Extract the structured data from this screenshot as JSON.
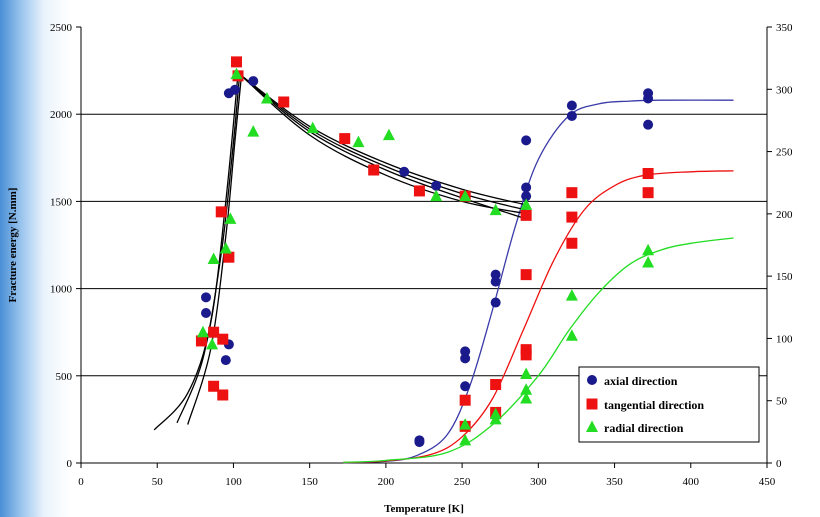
{
  "chart_data": {
    "type": "scatter",
    "xlabel": "Temperature [K]",
    "ylabel": "Fracture energy [N.mm]",
    "xlim": [
      0,
      450
    ],
    "ylim": [
      0,
      2500
    ],
    "y2lim": [
      0,
      350
    ],
    "x_ticks": [
      "0",
      "50",
      "100",
      "150",
      "200",
      "250",
      "300",
      "350",
      "400",
      "450"
    ],
    "y_ticks": [
      "0",
      "500",
      "1000",
      "1500",
      "2000",
      "2500"
    ],
    "y2_ticks": [
      "0",
      "50",
      "100",
      "150",
      "200",
      "250",
      "300",
      "350"
    ],
    "grid": "horizontal",
    "legend_position": "bottom-right",
    "series": [
      {
        "name": "axial direction",
        "axis": "left",
        "marker": "circle",
        "color": "#1a1a8c",
        "points": [
          [
            82,
            950
          ],
          [
            82,
            860
          ],
          [
            95,
            590
          ],
          [
            97,
            680
          ],
          [
            97,
            2120
          ],
          [
            101,
            2140
          ],
          [
            103,
            2220
          ],
          [
            113,
            2190
          ],
          [
            212,
            1670
          ],
          [
            222,
            130
          ],
          [
            222,
            120
          ],
          [
            233,
            1590
          ],
          [
            252,
            640
          ],
          [
            252,
            600
          ],
          [
            252,
            440
          ],
          [
            272,
            1080
          ],
          [
            272,
            1040
          ],
          [
            272,
            920
          ],
          [
            292,
            1850
          ],
          [
            292,
            1580
          ],
          [
            292,
            1530
          ],
          [
            322,
            2050
          ],
          [
            322,
            1990
          ],
          [
            372,
            2120
          ],
          [
            372,
            2090
          ],
          [
            372,
            1940
          ]
        ]
      },
      {
        "name": "tangential direction",
        "axis": "left",
        "marker": "square",
        "color": "#ee1111",
        "points": [
          [
            79,
            700
          ],
          [
            87,
            750
          ],
          [
            87,
            440
          ],
          [
            92,
            1440
          ],
          [
            93,
            710
          ],
          [
            93,
            390
          ],
          [
            97,
            1180
          ],
          [
            102,
            2300
          ],
          [
            103,
            2220
          ],
          [
            133,
            2070
          ],
          [
            173,
            1860
          ],
          [
            192,
            1680
          ],
          [
            222,
            1560
          ],
          [
            252,
            1530
          ],
          [
            252,
            360
          ],
          [
            252,
            210
          ],
          [
            272,
            450
          ],
          [
            272,
            290
          ],
          [
            292,
            1420
          ],
          [
            292,
            1080
          ],
          [
            292,
            650
          ],
          [
            292,
            620
          ],
          [
            322,
            1550
          ],
          [
            322,
            1410
          ],
          [
            322,
            1260
          ],
          [
            372,
            1660
          ],
          [
            372,
            1550
          ]
        ]
      },
      {
        "name": "radial direction",
        "axis": "left",
        "marker": "triangle",
        "color": "#22dd22",
        "points": [
          [
            80,
            750
          ],
          [
            86,
            680
          ],
          [
            87,
            1170
          ],
          [
            95,
            1230
          ],
          [
            98,
            1400
          ],
          [
            102,
            2230
          ],
          [
            113,
            1900
          ],
          [
            122,
            2090
          ],
          [
            152,
            1920
          ],
          [
            182,
            1840
          ],
          [
            202,
            1880
          ],
          [
            233,
            1530
          ],
          [
            252,
            1530
          ],
          [
            252,
            220
          ],
          [
            252,
            130
          ],
          [
            272,
            1450
          ],
          [
            272,
            280
          ],
          [
            272,
            250
          ],
          [
            292,
            1480
          ],
          [
            292,
            510
          ],
          [
            292,
            420
          ],
          [
            292,
            370
          ],
          [
            322,
            960
          ],
          [
            322,
            730
          ],
          [
            372,
            1220
          ],
          [
            372,
            1150
          ]
        ]
      }
    ],
    "fit_curves": [
      {
        "series": "axial direction",
        "color": "#3a3aa8",
        "points": [
          [
            172,
            2
          ],
          [
            200,
            10
          ],
          [
            220,
            42
          ],
          [
            240,
            160
          ],
          [
            255,
            440
          ],
          [
            270,
            880
          ],
          [
            285,
            1360
          ],
          [
            300,
            1740
          ],
          [
            320,
            1990
          ],
          [
            340,
            2060
          ],
          [
            360,
            2075
          ],
          [
            380,
            2080
          ],
          [
            428,
            2080
          ]
        ]
      },
      {
        "series": "tangential direction",
        "color": "#ee1111",
        "points": [
          [
            172,
            3
          ],
          [
            200,
            12
          ],
          [
            230,
            50
          ],
          [
            250,
            150
          ],
          [
            270,
            370
          ],
          [
            290,
            760
          ],
          [
            310,
            1160
          ],
          [
            330,
            1450
          ],
          [
            350,
            1590
          ],
          [
            370,
            1650
          ],
          [
            400,
            1670
          ],
          [
            428,
            1675
          ]
        ]
      },
      {
        "series": "radial direction",
        "color": "#22dd22",
        "points": [
          [
            172,
            4
          ],
          [
            200,
            15
          ],
          [
            240,
            60
          ],
          [
            270,
            220
          ],
          [
            300,
            500
          ],
          [
            320,
            760
          ],
          [
            340,
            980
          ],
          [
            360,
            1140
          ],
          [
            380,
            1220
          ],
          [
            400,
            1260
          ],
          [
            428,
            1290
          ]
        ]
      },
      {
        "series": "",
        "color": "#000000",
        "points": [
          [
            48,
            190
          ],
          [
            70,
            400
          ],
          [
            85,
            800
          ],
          [
            95,
            1500
          ],
          [
            103,
            2230
          ]
        ]
      },
      {
        "series": "",
        "color": "#000000",
        "points": [
          [
            63,
            230
          ],
          [
            80,
            600
          ],
          [
            92,
            1200
          ],
          [
            99,
            1750
          ],
          [
            104,
            2220
          ]
        ]
      },
      {
        "series": "",
        "color": "#000000",
        "points": [
          [
            70,
            220
          ],
          [
            85,
            650
          ],
          [
            95,
            1300
          ],
          [
            101,
            1850
          ],
          [
            105,
            2200
          ]
        ]
      },
      {
        "series": "",
        "color": "#000000",
        "points": [
          [
            104,
            2230
          ],
          [
            150,
            1900
          ],
          [
            200,
            1680
          ],
          [
            250,
            1520
          ],
          [
            292,
            1400
          ]
        ]
      },
      {
        "series": "",
        "color": "#000000",
        "points": [
          [
            104,
            2230
          ],
          [
            150,
            1930
          ],
          [
            200,
            1720
          ],
          [
            250,
            1570
          ],
          [
            292,
            1480
          ]
        ]
      },
      {
        "series": "",
        "color": "#000000",
        "points": [
          [
            104,
            2230
          ],
          [
            150,
            1880
          ],
          [
            200,
            1650
          ],
          [
            250,
            1500
          ],
          [
            292,
            1430
          ]
        ]
      },
      {
        "series": "",
        "color": "#000000",
        "points": [
          [
            104,
            2230
          ],
          [
            150,
            1915
          ],
          [
            200,
            1700
          ],
          [
            250,
            1545
          ],
          [
            292,
            1450
          ]
        ]
      }
    ]
  }
}
